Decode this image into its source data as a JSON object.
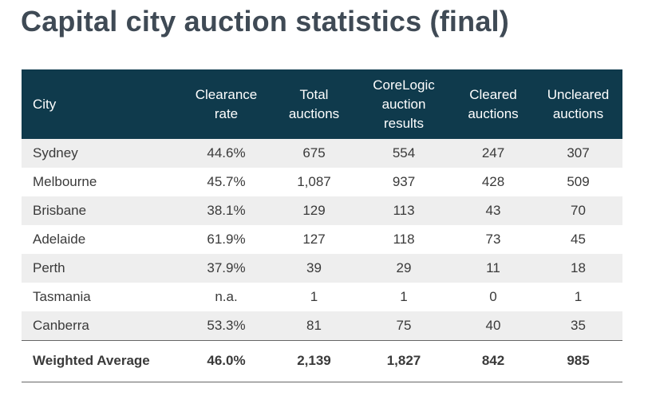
{
  "title": "Capital city auction statistics (final)",
  "table": {
    "headers": [
      [
        "City"
      ],
      [
        "Clearance",
        "rate"
      ],
      [
        "Total",
        "auctions"
      ],
      [
        "CoreLogic",
        "auction",
        "results"
      ],
      [
        "Cleared",
        "auctions"
      ],
      [
        "Uncleared",
        "auctions"
      ]
    ],
    "rows": [
      [
        "Sydney",
        "44.6%",
        "675",
        "554",
        "247",
        "307"
      ],
      [
        "Melbourne",
        "45.7%",
        "1,087",
        "937",
        "428",
        "509"
      ],
      [
        "Brisbane",
        "38.1%",
        "129",
        "113",
        "43",
        "70"
      ],
      [
        "Adelaide",
        "61.9%",
        "127",
        "118",
        "73",
        "45"
      ],
      [
        "Perth",
        "37.9%",
        "39",
        "29",
        "11",
        "18"
      ],
      [
        "Tasmania",
        "n.a.",
        "1",
        "1",
        "0",
        "1"
      ],
      [
        "Canberra",
        "53.3%",
        "81",
        "75",
        "40",
        "35"
      ]
    ],
    "total": [
      "Weighted Average",
      "46.0%",
      "2,139",
      "1,827",
      "842",
      "985"
    ]
  }
}
